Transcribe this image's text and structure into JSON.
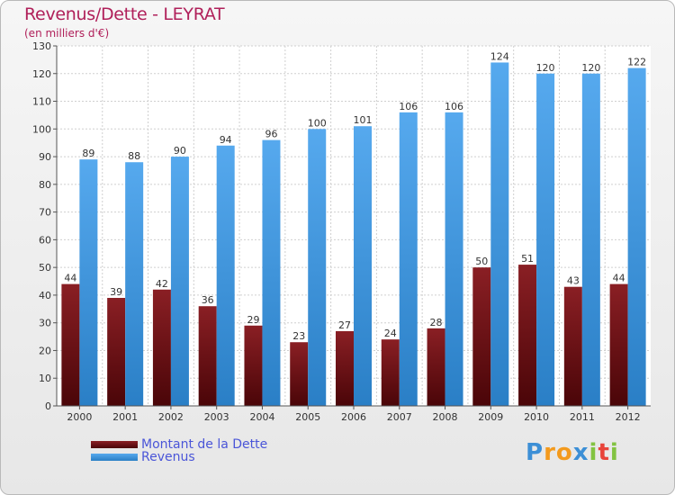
{
  "header": {
    "title": "Revenus/Dette - LEYRAT",
    "subtitle": "(en milliers d'€)"
  },
  "chart_data": {
    "type": "bar",
    "categories": [
      "2000",
      "2001",
      "2002",
      "2003",
      "2004",
      "2005",
      "2006",
      "2007",
      "2008",
      "2009",
      "2010",
      "2011",
      "2012"
    ],
    "series": [
      {
        "name": "Montant de la Dette",
        "values": [
          44,
          39,
          42,
          36,
          29,
          23,
          27,
          24,
          28,
          50,
          51,
          43,
          44
        ],
        "color": "#7a1418"
      },
      {
        "name": "Revenus",
        "values": [
          89,
          88,
          90,
          94,
          96,
          100,
          101,
          106,
          106,
          124,
          120,
          120,
          122
        ],
        "color": "#3f95dc"
      }
    ],
    "ylim": [
      0,
      130
    ],
    "yticks": [
      0,
      10,
      20,
      30,
      40,
      50,
      60,
      70,
      80,
      90,
      100,
      110,
      120,
      130
    ],
    "grid": true,
    "legend": "bottom-left"
  },
  "legend": {
    "debt_label": "Montant de la Dette",
    "revenue_label": "Revenus"
  },
  "logo": {
    "letters": [
      "P",
      "r",
      "o",
      "x",
      "i",
      "t",
      "i"
    ],
    "colors": [
      "#3c8fd6",
      "#f39a1d",
      "#f39a1d",
      "#3c8fd6",
      "#82c341",
      "#e8443a",
      "#82c341"
    ]
  }
}
